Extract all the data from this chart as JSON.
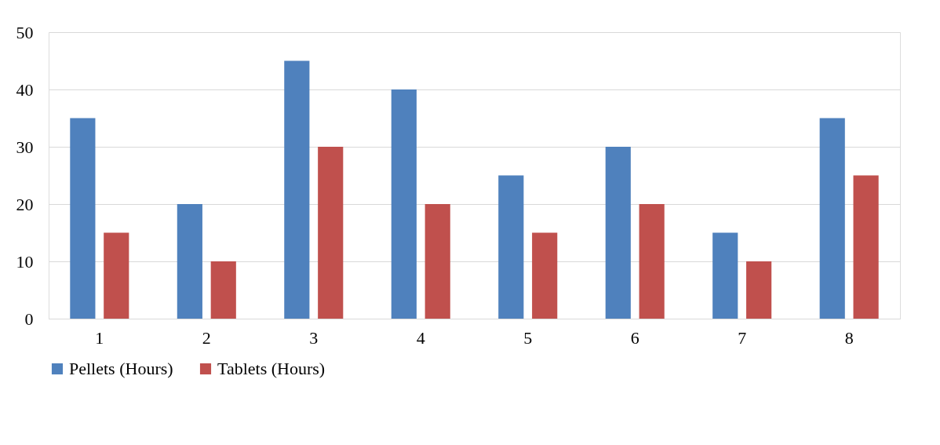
{
  "chart_data": {
    "type": "bar",
    "categories": [
      "1",
      "2",
      "3",
      "4",
      "5",
      "6",
      "7",
      "8"
    ],
    "series": [
      {
        "name": "Pellets (Hours)",
        "color": "#4f81bd",
        "values": [
          35,
          20,
          45,
          40,
          25,
          30,
          15,
          35
        ]
      },
      {
        "name": "Tablets (Hours)",
        "color": "#c0504d",
        "values": [
          15,
          10,
          30,
          20,
          15,
          20,
          10,
          25
        ]
      }
    ],
    "ylim": [
      0,
      50
    ],
    "yticks": [
      0,
      10,
      20,
      30,
      40,
      50
    ],
    "grid": "y",
    "legend": "bottom"
  }
}
